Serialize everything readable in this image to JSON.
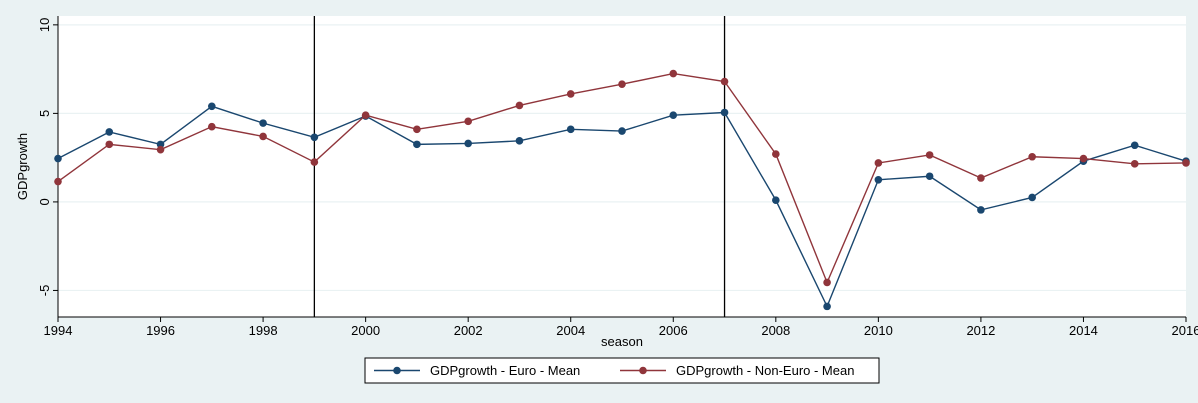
{
  "chart_data": {
    "type": "line",
    "title": "",
    "xlabel": "season",
    "ylabel": "GDPgrowth",
    "x": [
      1994,
      1995,
      1996,
      1997,
      1998,
      1999,
      2000,
      2001,
      2002,
      2003,
      2004,
      2005,
      2006,
      2007,
      2008,
      2009,
      2010,
      2011,
      2012,
      2013,
      2014,
      2015,
      2016
    ],
    "xlim": [
      1994,
      2016
    ],
    "ylim": [
      -6.5,
      10.5
    ],
    "xticks": [
      "1994",
      "1996",
      "1998",
      "2000",
      "2002",
      "2004",
      "2006",
      "2008",
      "2010",
      "2012",
      "2014",
      "2016"
    ],
    "yticks": [
      "-5",
      "0",
      "5",
      "10"
    ],
    "grid": true,
    "legend_position": "bottom",
    "reference_lines_x": [
      1999,
      2007
    ],
    "series": [
      {
        "name": "GDPgrowth - Euro - Mean",
        "color": "#1a476f",
        "values": [
          2.45,
          3.95,
          3.25,
          5.4,
          4.45,
          3.65,
          4.85,
          3.25,
          3.3,
          3.45,
          4.1,
          4.0,
          4.9,
          5.05,
          0.1,
          -5.9,
          1.25,
          1.45,
          -0.45,
          0.25,
          2.3,
          3.2,
          2.3
        ]
      },
      {
        "name": "GDPgrowth - Non-Euro - Mean",
        "color": "#90353b",
        "values": [
          1.15,
          3.25,
          2.95,
          4.25,
          3.7,
          2.25,
          4.9,
          4.1,
          4.55,
          5.45,
          6.1,
          6.65,
          7.25,
          6.8,
          2.7,
          -4.55,
          2.2,
          2.65,
          1.35,
          2.55,
          2.45,
          2.15,
          2.2
        ]
      }
    ]
  }
}
